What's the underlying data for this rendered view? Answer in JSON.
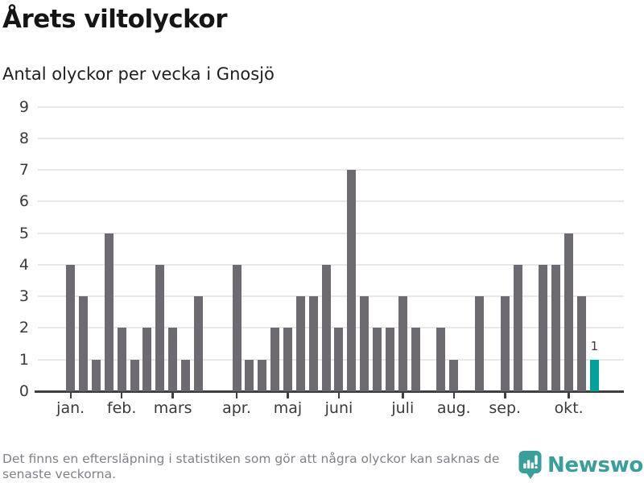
{
  "header": {
    "title": "Årets viltolyckor",
    "subtitle": "Antal olyckor per vecka i Gnosjö"
  },
  "chart_data": {
    "type": "bar",
    "title": "Årets viltolyckor",
    "subtitle": "Antal olyckor per vecka i Gnosjö",
    "x_unit": "vecka",
    "ylim": [
      0,
      9
    ],
    "yticks": [
      0,
      1,
      2,
      3,
      4,
      5,
      6,
      7,
      8,
      9
    ],
    "grid": true,
    "values_by_week": [
      4,
      3,
      1,
      5,
      2,
      1,
      2,
      4,
      2,
      1,
      3,
      0,
      0,
      4,
      1,
      1,
      2,
      2,
      3,
      3,
      4,
      2,
      7,
      3,
      2,
      2,
      3,
      2,
      0,
      2,
      1,
      0,
      3,
      0,
      3,
      4,
      0,
      4,
      4,
      5,
      3,
      1
    ],
    "first_week": 1,
    "month_ticks": [
      {
        "label": "jan.",
        "week": 1
      },
      {
        "label": "feb.",
        "week": 5
      },
      {
        "label": "mars",
        "week": 9
      },
      {
        "label": "apr.",
        "week": 14
      },
      {
        "label": "maj",
        "week": 18
      },
      {
        "label": "juni",
        "week": 22
      },
      {
        "label": "juli",
        "week": 27
      },
      {
        "label": "aug.",
        "week": 31
      },
      {
        "label": "sep.",
        "week": 35
      },
      {
        "label": "okt.",
        "week": 40
      }
    ],
    "highlight_week": 42,
    "highlight_value_label": "1",
    "bar_color": "#6d6b71",
    "highlight_color": "#00a29b"
  },
  "footer": {
    "note": "Det finns en eftersläpning i statistiken som gör att några olyckor kan saknas de senaste veckorna.",
    "brand": "Newsworthy",
    "brand_color": "#3a9e9b"
  }
}
